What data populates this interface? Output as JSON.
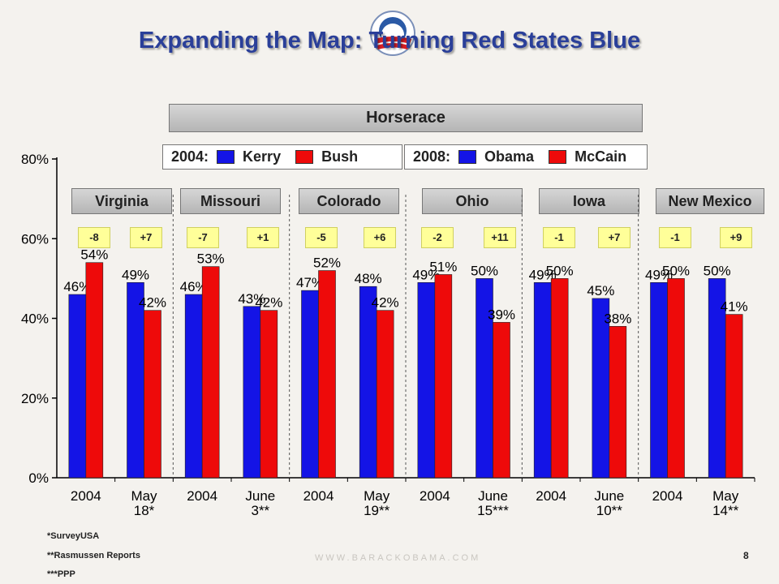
{
  "slide": {
    "title": "Expanding the Map: Turning Red States Blue",
    "panel_title": "Horserace",
    "legend_2004": {
      "label": "2004:",
      "kerry": "Kerry",
      "bush": "Bush"
    },
    "legend_2008": {
      "label": "2008:",
      "obama": "Obama",
      "mccain": "McCain"
    },
    "states": [
      "Virginia",
      "Missouri",
      "Colorado",
      "Ohio",
      "Iowa",
      "New Mexico"
    ],
    "diffs": [
      "-8",
      "+7",
      "-7",
      "+1",
      "-5",
      "+6",
      "-2",
      "+11",
      "-1",
      "+7",
      "-1",
      "+9"
    ],
    "footnotes": [
      "*SurveyUSA",
      "**Rasmussen Reports",
      "***PPP"
    ],
    "website": "WWW.BARACKOBAMA.COM",
    "page_number": "8"
  },
  "colors": {
    "blue": "#1414e6",
    "red": "#ee0a0a",
    "title": "#2a3f99"
  },
  "chart_data": {
    "type": "bar",
    "categories": [
      "2004",
      "May 18*",
      "2004",
      "June 3**",
      "2004",
      "May 19**",
      "2004",
      "June 15***",
      "2004",
      "June 10**",
      "2004",
      "May 14**"
    ],
    "category_lines": [
      [
        "2004"
      ],
      [
        "May",
        "18*"
      ],
      [
        "2004"
      ],
      [
        "June",
        "3**"
      ],
      [
        "2004"
      ],
      [
        "May",
        "19**"
      ],
      [
        "2004"
      ],
      [
        "June",
        "15***"
      ],
      [
        "2004"
      ],
      [
        "June",
        "10**"
      ],
      [
        "2004"
      ],
      [
        "May",
        "14**"
      ]
    ],
    "series": [
      {
        "name": "Kerry / Obama",
        "color": "#1414e6",
        "values": [
          46,
          49,
          46,
          43,
          47,
          48,
          49,
          50,
          49,
          45,
          49,
          50
        ]
      },
      {
        "name": "Bush / McCain",
        "color": "#ee0a0a",
        "values": [
          54,
          42,
          53,
          42,
          52,
          42,
          51,
          39,
          50,
          38,
          50,
          41
        ]
      }
    ],
    "ylim": [
      0,
      80
    ],
    "yticks": [
      "0%",
      "20%",
      "40%",
      "60%",
      "80%"
    ],
    "ytick_values": [
      0,
      20,
      40,
      60,
      80
    ]
  }
}
